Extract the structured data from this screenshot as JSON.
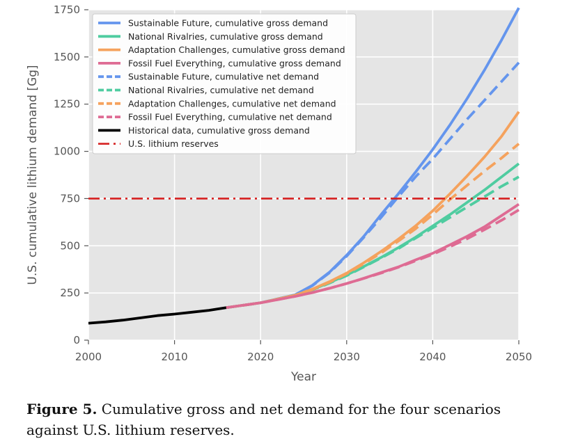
{
  "caption": {
    "label": "Figure 5.",
    "text": "Cumulative gross and net demand for the four scenarios against U.S. lithium reserves."
  },
  "chart_data": {
    "type": "line",
    "title": "",
    "xlabel": "Year",
    "ylabel": "U.S. cumulative lithium demand [Gg]",
    "xlim": [
      2000,
      2050
    ],
    "ylim": [
      0,
      1750
    ],
    "xticks": [
      2000,
      2010,
      2020,
      2030,
      2040,
      2050
    ],
    "yticks": [
      0,
      250,
      500,
      750,
      1000,
      1250,
      1500,
      1750
    ],
    "grid": true,
    "legend_position": "top-left",
    "background": "#e5e5e5",
    "series": [
      {
        "name": "Sustainable Future, cumulative gross demand",
        "color": "#6495ed",
        "style": "solid",
        "x": [
          2016,
          2020,
          2024,
          2026,
          2028,
          2030,
          2032,
          2034,
          2036,
          2038,
          2040,
          2042,
          2044,
          2046,
          2048,
          2050
        ],
        "y": [
          172,
          198,
          240,
          290,
          360,
          450,
          550,
          665,
          775,
          890,
          1010,
          1140,
          1280,
          1430,
          1590,
          1760
        ]
      },
      {
        "name": "National Rivalries, cumulative gross demand",
        "color": "#4fcca0",
        "style": "solid",
        "x": [
          2016,
          2020,
          2024,
          2026,
          2028,
          2030,
          2032,
          2034,
          2036,
          2038,
          2040,
          2042,
          2044,
          2046,
          2048,
          2050
        ],
        "y": [
          172,
          198,
          238,
          268,
          305,
          345,
          390,
          438,
          490,
          545,
          605,
          665,
          730,
          795,
          865,
          935
        ]
      },
      {
        "name": "Adaptation Challenges, cumulative gross demand",
        "color": "#f5a25d",
        "style": "solid",
        "x": [
          2016,
          2020,
          2024,
          2026,
          2028,
          2030,
          2032,
          2034,
          2036,
          2038,
          2040,
          2042,
          2044,
          2046,
          2048,
          2050
        ],
        "y": [
          172,
          198,
          238,
          270,
          310,
          355,
          410,
          470,
          535,
          605,
          685,
          775,
          870,
          970,
          1080,
          1210
        ]
      },
      {
        "name": "Fossil Fuel Everything, cumulative gross demand",
        "color": "#de6b93",
        "style": "solid",
        "x": [
          2016,
          2020,
          2024,
          2026,
          2028,
          2030,
          2032,
          2034,
          2036,
          2038,
          2040,
          2042,
          2044,
          2046,
          2048,
          2050
        ],
        "y": [
          172,
          198,
          232,
          252,
          275,
          300,
          328,
          358,
          388,
          425,
          460,
          505,
          550,
          600,
          660,
          720
        ]
      },
      {
        "name": "Sustainable Future, cumulative net demand",
        "color": "#6495ed",
        "style": "dashed",
        "x": [
          2016,
          2020,
          2024,
          2026,
          2028,
          2030,
          2032,
          2034,
          2036,
          2038,
          2040,
          2042,
          2044,
          2046,
          2048,
          2050
        ],
        "y": [
          172,
          198,
          240,
          288,
          357,
          445,
          545,
          650,
          760,
          865,
          960,
          1065,
          1170,
          1270,
          1370,
          1470
        ]
      },
      {
        "name": "National Rivalries, cumulative net demand",
        "color": "#4fcca0",
        "style": "dashed",
        "x": [
          2016,
          2020,
          2024,
          2026,
          2028,
          2030,
          2032,
          2034,
          2036,
          2038,
          2040,
          2042,
          2044,
          2046,
          2048,
          2050
        ],
        "y": [
          172,
          198,
          238,
          266,
          302,
          342,
          388,
          435,
          485,
          540,
          595,
          650,
          705,
          760,
          815,
          865
        ]
      },
      {
        "name": "Adaptation Challenges, cumulative net demand",
        "color": "#f5a25d",
        "style": "dashed",
        "x": [
          2016,
          2020,
          2024,
          2026,
          2028,
          2030,
          2032,
          2034,
          2036,
          2038,
          2040,
          2042,
          2044,
          2046,
          2048,
          2050
        ],
        "y": [
          172,
          198,
          238,
          268,
          307,
          352,
          405,
          462,
          525,
          590,
          665,
          745,
          820,
          895,
          965,
          1040
        ]
      },
      {
        "name": "Fossil Fuel Everything, cumulative net demand",
        "color": "#de6b93",
        "style": "dashed",
        "x": [
          2016,
          2020,
          2024,
          2026,
          2028,
          2030,
          2032,
          2034,
          2036,
          2038,
          2040,
          2042,
          2044,
          2046,
          2048,
          2050
        ],
        "y": [
          172,
          198,
          232,
          252,
          275,
          300,
          327,
          355,
          386,
          420,
          455,
          495,
          537,
          585,
          635,
          690
        ]
      },
      {
        "name": "Historical data, cumulative gross demand",
        "color": "#000000",
        "style": "solid",
        "x": [
          2000,
          2002,
          2004,
          2006,
          2008,
          2010,
          2012,
          2014,
          2016
        ],
        "y": [
          90,
          97,
          106,
          118,
          130,
          138,
          148,
          158,
          172
        ]
      },
      {
        "name": "U.S. lithium reserves",
        "color": "#d62020",
        "style": "dashdot",
        "x": [
          2000,
          2050
        ],
        "y": [
          750,
          750
        ]
      }
    ]
  }
}
